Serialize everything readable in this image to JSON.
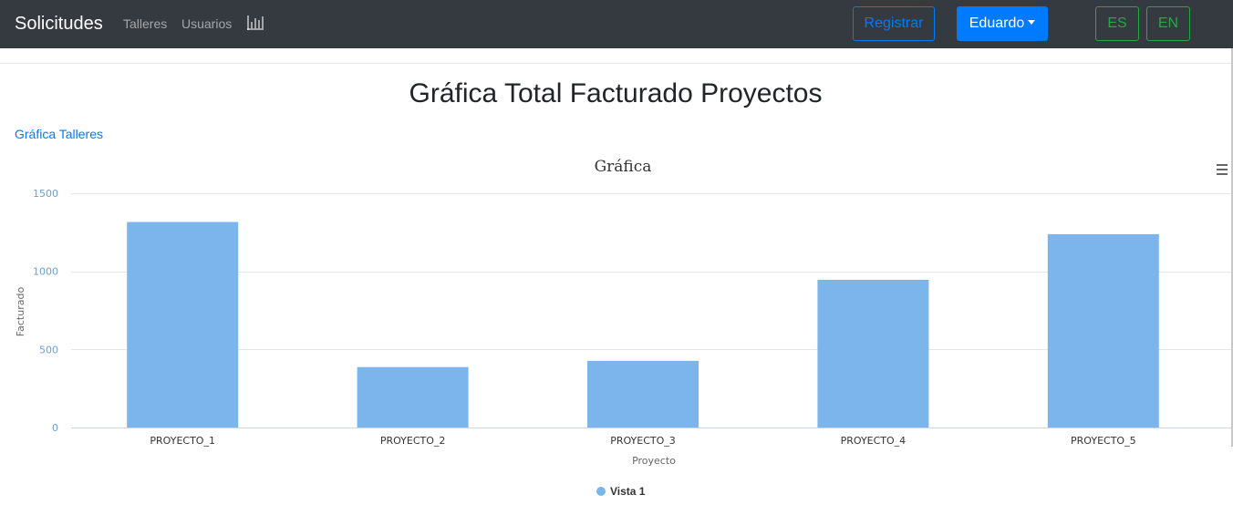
{
  "navbar": {
    "brand": "Solicitudes",
    "links": [
      "Talleres",
      "Usuarios"
    ],
    "chart_icon": "bar-chart-icon",
    "register_label": "Registrar",
    "user_label": "Eduardo",
    "lang_es": "ES",
    "lang_en": "EN",
    "colors": {
      "background": "#343a40",
      "primary": "#007bff",
      "success": "#28a745"
    }
  },
  "page": {
    "title": "Gráfica Total Facturado Proyectos",
    "link": "Gráfica Talleres"
  },
  "chart_menu_icon": "hamburger-menu-icon",
  "chart_data": {
    "type": "bar",
    "title": "Gráfica",
    "xlabel": "Proyecto",
    "ylabel": "Facturado",
    "categories": [
      "PROYECTO_1",
      "PROYECTO_2",
      "PROYECTO_3",
      "PROYECTO_4",
      "PROYECTO_5"
    ],
    "series": [
      {
        "name": "Vista 1",
        "values": [
          1316,
          387,
          427,
          946,
          1238
        ],
        "color": "#7cb5ec"
      }
    ],
    "ylim": [
      0,
      1500
    ],
    "yticks": [
      0,
      500,
      1000,
      1500
    ],
    "grid": true,
    "legend": "bottom-center"
  }
}
